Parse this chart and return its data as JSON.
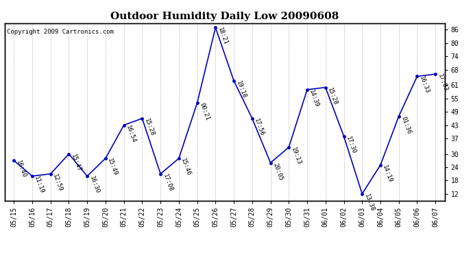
{
  "title": "Outdoor Humidity Daily Low 20090608",
  "copyright": "Copyright 2009 Cartronics.com",
  "dates": [
    "05/15",
    "05/16",
    "05/17",
    "05/18",
    "05/19",
    "05/20",
    "05/21",
    "05/22",
    "05/23",
    "05/24",
    "05/25",
    "05/26",
    "05/27",
    "05/28",
    "05/29",
    "05/30",
    "05/31",
    "06/01",
    "06/02",
    "06/03",
    "06/04",
    "06/05",
    "06/06",
    "06/07"
  ],
  "values": [
    27,
    20,
    21,
    30,
    20,
    28,
    43,
    46,
    21,
    28,
    53,
    87,
    63,
    46,
    26,
    33,
    59,
    60,
    38,
    12,
    25,
    47,
    65,
    66
  ],
  "labels": [
    "16:40",
    "11:19",
    "12:59",
    "15:47",
    "16:30",
    "15:49",
    "16:54",
    "15:28",
    "17:08",
    "15:46",
    "00:21",
    "18:21",
    "19:18",
    "17:56",
    "20:05",
    "19:13",
    "14:39",
    "15:28",
    "17:30",
    "13:38",
    "14:19",
    "01:36",
    "16:33",
    "17:03"
  ],
  "line_color": "#0000bb",
  "marker_color": "#0000bb",
  "bg_color": "#ffffff",
  "grid_color": "#bbbbbb",
  "ylim": [
    9,
    89
  ],
  "yticks": [
    12,
    18,
    24,
    30,
    37,
    43,
    49,
    55,
    61,
    68,
    74,
    80,
    86
  ],
  "title_fontsize": 11,
  "label_fontsize": 6.5,
  "tick_fontsize": 7,
  "copyright_fontsize": 6.5
}
